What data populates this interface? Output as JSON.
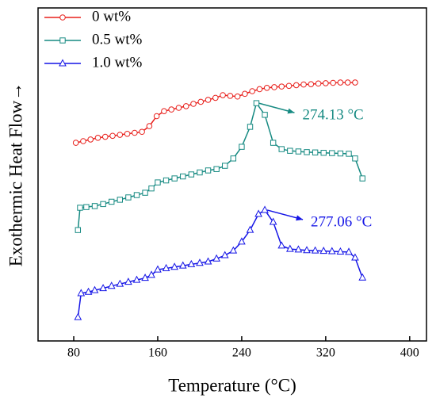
{
  "chart_data": {
    "type": "line",
    "xlabel": "Temperature  (°C)",
    "ylabel": "Exothermic Heat Flow→",
    "xlim": [
      46,
      416
    ],
    "xticks": [
      80,
      160,
      240,
      320,
      400
    ],
    "ylim": [
      0,
      100
    ],
    "series": [
      {
        "name": "0    wt%",
        "color": "#e8201c",
        "marker": "circle",
        "x": [
          82,
          89,
          96,
          103,
          110,
          117,
          124,
          131,
          138,
          145,
          152,
          159,
          166,
          173,
          180,
          187,
          194,
          201,
          208,
          215,
          222,
          229,
          236,
          243,
          250,
          257,
          264,
          271,
          278,
          285,
          292,
          299,
          306,
          313,
          320,
          327,
          334,
          341,
          348
        ],
        "values": [
          59.5,
          60,
          60.5,
          61,
          61.3,
          61.6,
          61.9,
          62.2,
          62.5,
          62.8,
          64.5,
          67.5,
          69,
          69.5,
          70,
          70.5,
          71.2,
          71.8,
          72.4,
          73,
          73.8,
          73.6,
          73.4,
          74.2,
          75,
          75.6,
          76,
          76.2,
          76.4,
          76.6,
          76.8,
          77,
          77.1,
          77.3,
          77.4,
          77.5,
          77.6,
          77.6,
          77.6
        ]
      },
      {
        "name": "0.5 wt%",
        "color": "#168a82",
        "marker": "square",
        "x": [
          84,
          86,
          92,
          100,
          108,
          116,
          124,
          132,
          140,
          148,
          154,
          160,
          168,
          176,
          184,
          192,
          200,
          208,
          216,
          224,
          232,
          240,
          248,
          254,
          262,
          270,
          278,
          286,
          294,
          302,
          310,
          318,
          326,
          334,
          342,
          348,
          355
        ],
        "values": [
          33.3,
          40,
          40.2,
          40.5,
          41.1,
          41.8,
          42.4,
          43.1,
          43.8,
          44.5,
          45.8,
          47.6,
          48.2,
          48.8,
          49.4,
          50,
          50.6,
          51.2,
          51.6,
          52.6,
          54.8,
          58.3,
          64.3,
          71.4,
          67.9,
          59.5,
          57.6,
          57.1,
          56.9,
          56.7,
          56.6,
          56.5,
          56.4,
          56.3,
          56.2,
          54.8,
          48.8
        ]
      },
      {
        "name": "1.0 wt%",
        "color": "#1414e6",
        "marker": "triangle",
        "x": [
          84,
          87,
          94,
          100,
          108,
          116,
          124,
          132,
          140,
          148,
          154,
          160,
          168,
          176,
          184,
          192,
          200,
          208,
          216,
          224,
          232,
          240,
          248,
          256,
          262,
          270,
          278,
          286,
          294,
          302,
          310,
          318,
          326,
          334,
          342,
          348,
          355
        ],
        "values": [
          7.1,
          14.3,
          14.7,
          15.2,
          15.8,
          16.5,
          17.1,
          17.7,
          18.3,
          18.9,
          19.8,
          21.4,
          21.8,
          22.2,
          22.6,
          23,
          23.4,
          23.8,
          24.7,
          25.7,
          27.1,
          29.8,
          33.3,
          38.1,
          39.3,
          35.7,
          28.6,
          27.6,
          27.4,
          27.2,
          27.1,
          27,
          26.9,
          26.8,
          26.7,
          25,
          19
        ]
      }
    ],
    "annotations": [
      "274.13 °C",
      "277.06 °C"
    ]
  }
}
